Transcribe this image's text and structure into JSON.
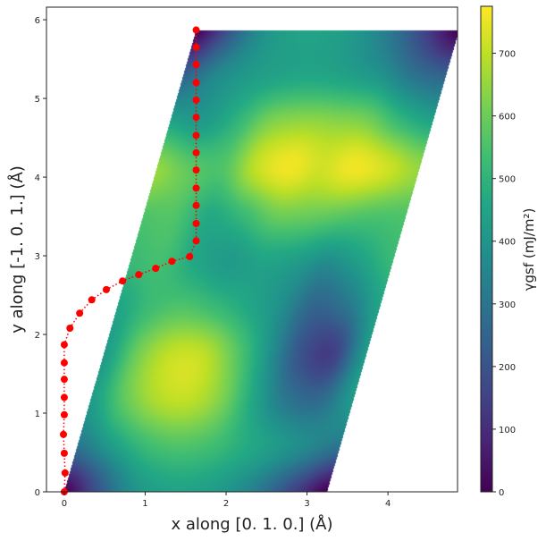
{
  "chart_data": {
    "type": "heatmap",
    "xlabel": "x along [0. 1. 0.] (Å)",
    "ylabel": "y along [-1.  0.  1.] (Å)",
    "colorbar_label": "γgsf (mJ/m²)",
    "colormap": "viridis",
    "xlim": [
      -0.22,
      4.86
    ],
    "ylim": [
      0,
      6.16
    ],
    "clim": [
      0,
      775
    ],
    "x_ticks": [
      "0",
      "1",
      "2",
      "3",
      "4"
    ],
    "y_ticks": [
      "0",
      "1",
      "2",
      "3",
      "4",
      "5",
      "6"
    ],
    "colorbar_ticks": [
      "0",
      "100",
      "200",
      "300",
      "400",
      "500",
      "600",
      "700"
    ],
    "cell": {
      "a": [
        3.25,
        0
      ],
      "b": [
        1.63,
        5.87
      ]
    },
    "surface_grid_note_axes": "rows: fractional b from 0 to 1; cols: fractional a from 0 to 1",
    "surface_values": [
      [
        0,
        200,
        380,
        440,
        440,
        400,
        300,
        150,
        0
      ],
      [
        300,
        420,
        520,
        560,
        540,
        480,
        420,
        360,
        300
      ],
      [
        420,
        580,
        680,
        700,
        620,
        450,
        300,
        270,
        420
      ],
      [
        420,
        600,
        700,
        700,
        580,
        400,
        200,
        150,
        420
      ],
      [
        450,
        530,
        560,
        520,
        460,
        380,
        250,
        300,
        450
      ],
      [
        520,
        540,
        460,
        420,
        450,
        430,
        380,
        440,
        520
      ],
      [
        560,
        560,
        470,
        520,
        600,
        600,
        580,
        560,
        560
      ],
      [
        650,
        580,
        560,
        700,
        760,
        720,
        760,
        720,
        650
      ],
      [
        450,
        420,
        500,
        620,
        650,
        640,
        620,
        520,
        450
      ],
      [
        250,
        360,
        420,
        450,
        460,
        440,
        400,
        300,
        250
      ],
      [
        0,
        200,
        380,
        440,
        440,
        400,
        300,
        150,
        0
      ]
    ],
    "path": {
      "color": "#ff0000",
      "style": "dotted line with circle markers",
      "x": [
        0.0,
        0.01,
        0.0,
        -0.01,
        0.0,
        0.0,
        0.0,
        0.0,
        0.0,
        0.07,
        0.19,
        0.34,
        0.52,
        0.72,
        0.92,
        1.13,
        1.33,
        1.55,
        1.63,
        1.63,
        1.63,
        1.63,
        1.63,
        1.63,
        1.63,
        1.63,
        1.63,
        1.63,
        1.63,
        1.63,
        1.63
      ],
      "y": [
        0.0,
        0.24,
        0.49,
        0.73,
        0.98,
        1.2,
        1.43,
        1.64,
        1.87,
        2.08,
        2.27,
        2.44,
        2.57,
        2.68,
        2.76,
        2.84,
        2.93,
        2.99,
        3.19,
        3.41,
        3.64,
        3.86,
        4.09,
        4.31,
        4.53,
        4.76,
        4.98,
        5.2,
        5.43,
        5.65,
        5.87
      ]
    }
  }
}
